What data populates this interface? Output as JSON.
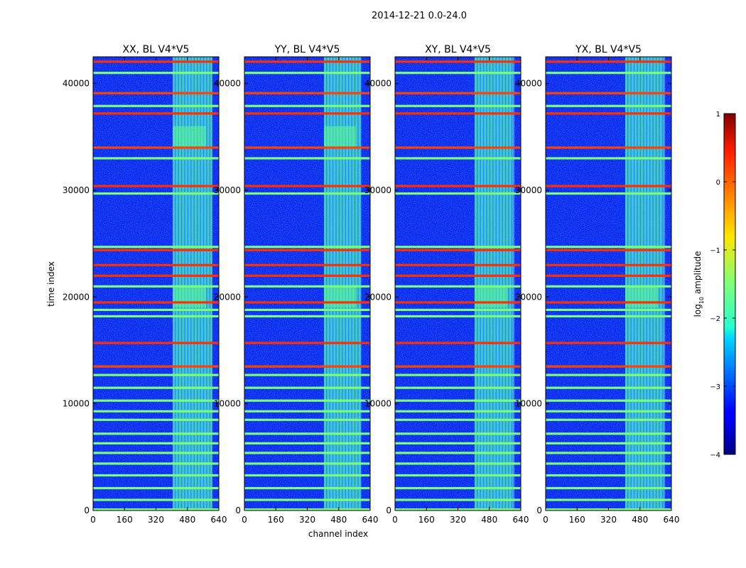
{
  "suptitle": "2014-12-21 0.0-24.0",
  "chart_data": {
    "type": "heatmap",
    "title": "2014-12-21 0.0-24.0",
    "xlabel": "channel index",
    "ylabel": "time index",
    "xlim": [
      0,
      640
    ],
    "ylim": [
      0,
      42500
    ],
    "xticks": [
      "0",
      "160",
      "320",
      "480",
      "640"
    ],
    "yticks": [
      "0",
      "10000",
      "20000",
      "30000",
      "40000"
    ],
    "xtick_values": [
      0,
      160,
      320,
      480,
      640
    ],
    "ytick_values": [
      0,
      10000,
      20000,
      30000,
      40000
    ],
    "panels": [
      {
        "title": "XX, BL V4*V5",
        "band_channels": [
          405,
          605
        ],
        "bright_blocks": [
          [
            34000,
            36000
          ],
          [
            19000,
            21000
          ]
        ]
      },
      {
        "title": "YY, BL V4*V5",
        "band_channels": [
          405,
          595
        ],
        "bright_blocks": [
          [
            34000,
            36000
          ],
          [
            19000,
            21000
          ]
        ]
      },
      {
        "title": "XY, BL V4*V5",
        "band_channels": [
          405,
          600
        ],
        "bright_blocks": [
          [
            19000,
            21000
          ]
        ]
      },
      {
        "title": "YX, BL V4*V5",
        "band_channels": [
          405,
          600
        ],
        "bright_blocks": [
          [
            19000,
            21000
          ]
        ]
      }
    ],
    "flagged_time_rows": [
      {
        "t": 42050,
        "level": 0.3
      },
      {
        "t": 41000,
        "level": -1.5
      },
      {
        "t": 39100,
        "level": 0.2
      },
      {
        "t": 37900,
        "level": -1.5
      },
      {
        "t": 37200,
        "level": 0.3
      },
      {
        "t": 34000,
        "level": 0.2
      },
      {
        "t": 33000,
        "level": -1.5
      },
      {
        "t": 30400,
        "level": 0.3
      },
      {
        "t": 29700,
        "level": -1.5
      },
      {
        "t": 24700,
        "level": -1.5
      },
      {
        "t": 24400,
        "level": 0.3
      },
      {
        "t": 23000,
        "level": 0.3
      },
      {
        "t": 22000,
        "level": 0.3
      },
      {
        "t": 21000,
        "level": -1.5
      },
      {
        "t": 19500,
        "level": 0.3
      },
      {
        "t": 18800,
        "level": -1.5
      },
      {
        "t": 18200,
        "level": -1.5
      },
      {
        "t": 15700,
        "level": 0.3
      },
      {
        "t": 13500,
        "level": 0.2
      },
      {
        "t": 12700,
        "level": -1.5
      },
      {
        "t": 11500,
        "level": -1.5
      },
      {
        "t": 10300,
        "level": -1.5
      },
      {
        "t": 9300,
        "level": -1.5
      },
      {
        "t": 8500,
        "level": -1.5
      },
      {
        "t": 7200,
        "level": -1.5
      },
      {
        "t": 6300,
        "level": -1.5
      },
      {
        "t": 5400,
        "level": -1.5
      },
      {
        "t": 4400,
        "level": -1.5
      },
      {
        "t": 3300,
        "level": -1.5
      },
      {
        "t": 2100,
        "level": -1.5
      },
      {
        "t": 1000,
        "level": -1.5
      },
      {
        "t": 100,
        "level": -1.5
      }
    ],
    "colorbar": {
      "label": "log",
      "label_sub": "10",
      "label_rest": " amplitude",
      "range": [
        -4,
        1
      ],
      "ticks": [
        "1",
        "0",
        "−1",
        "−2",
        "−3",
        "−4"
      ],
      "tick_values": [
        1,
        0,
        -1,
        -2,
        -3,
        -4
      ],
      "colormap": "jet"
    }
  }
}
